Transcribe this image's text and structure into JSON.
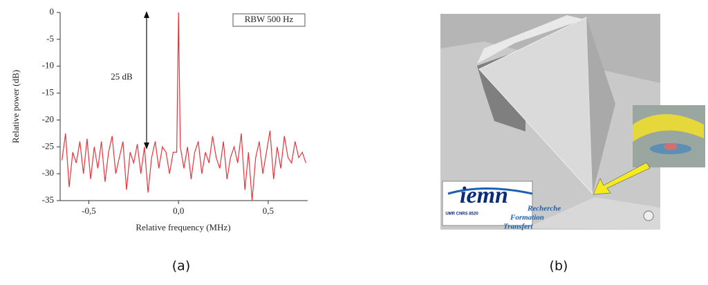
{
  "chart_data": {
    "type": "line",
    "x_label": "Relative frequency (MHz)",
    "y_label": "Relative power (dB)",
    "annotations": [
      "25 dB",
      "RBW  500 Hz"
    ],
    "color": "#e8323a",
    "x": [
      -0.65,
      -0.63,
      -0.61,
      -0.59,
      -0.57,
      -0.55,
      -0.53,
      -0.51,
      -0.49,
      -0.47,
      -0.45,
      -0.43,
      -0.41,
      -0.39,
      -0.37,
      -0.35,
      -0.33,
      -0.31,
      -0.29,
      -0.27,
      -0.25,
      -0.23,
      -0.21,
      -0.19,
      -0.17,
      -0.15,
      -0.13,
      -0.11,
      -0.09,
      -0.07,
      -0.05,
      -0.03,
      -0.01,
      0,
      0.01,
      0.03,
      0.05,
      0.07,
      0.09,
      0.11,
      0.13,
      0.15,
      0.17,
      0.19,
      0.21,
      0.23,
      0.25,
      0.27,
      0.29,
      0.31,
      0.33,
      0.35,
      0.37,
      0.39,
      0.41,
      0.43,
      0.45,
      0.47,
      0.49,
      0.51,
      0.53,
      0.55,
      0.57,
      0.59,
      0.61,
      0.63,
      0.65,
      0.67,
      0.69,
      0.71
    ],
    "values": [
      -27.5,
      -22.5,
      -32.5,
      -26,
      -28,
      -24,
      -30,
      -23.5,
      -31,
      -25,
      -29,
      -24,
      -31.5,
      -26,
      -23,
      -30,
      -27,
      -24,
      -33,
      -26,
      -28,
      -24.5,
      -30,
      -25,
      -33.5,
      -27,
      -24,
      -29,
      -25,
      -26,
      -30,
      -26,
      -26,
      0,
      -25,
      -29,
      -25,
      -31,
      -26,
      -24,
      -30,
      -26,
      -28,
      -23,
      -27,
      -29,
      -24,
      -31,
      -27,
      -25,
      -28,
      -22.5,
      -33,
      -26,
      -35,
      -27,
      -24,
      -30,
      -26,
      -22,
      -31,
      -25,
      -29,
      -23,
      -27,
      -28,
      -24,
      -27,
      -26,
      -28
    ],
    "xlim": [
      -0.66,
      0.72
    ],
    "ylim": [
      -35,
      0
    ],
    "xticks": [
      {
        "value": -0.5,
        "label": "-0,5"
      },
      {
        "value": 0,
        "label": "0,0"
      },
      {
        "value": 0.5,
        "label": "0,5"
      }
    ],
    "yticks": [
      0,
      -5,
      -10,
      -15,
      -20,
      -25,
      -30,
      -35
    ]
  },
  "figure": {
    "panel_a": "(a)",
    "panel_b": "(b)",
    "logo": {
      "name": "iemn",
      "lines": [
        "Recherche",
        "Formation",
        "Transfert"
      ],
      "unit": "UMR CNRS 8520"
    }
  }
}
